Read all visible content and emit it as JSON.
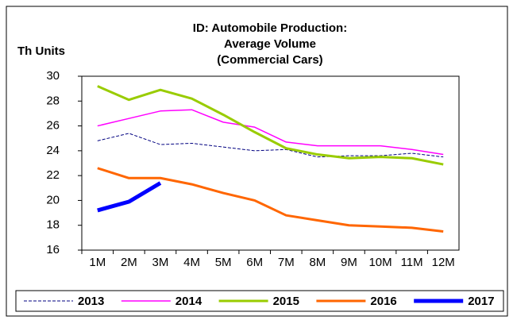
{
  "chart_data": {
    "type": "line",
    "title": [
      "ID: Automobile Production:",
      "Average Volume",
      "(Commercial Cars)"
    ],
    "y_label": "Th Units",
    "categories": [
      "1M",
      "2M",
      "3M",
      "4M",
      "5M",
      "6M",
      "7M",
      "8M",
      "9M",
      "10M",
      "11M",
      "12M"
    ],
    "series": [
      {
        "name": "2013",
        "color": "#000080",
        "width": 1,
        "dashed": true,
        "values": [
          24.8,
          25.4,
          24.5,
          24.6,
          24.3,
          24.0,
          24.1,
          23.5,
          23.6,
          23.6,
          23.8,
          23.5
        ]
      },
      {
        "name": "2014",
        "color": "#ff00ff",
        "width": 1.5,
        "dashed": false,
        "values": [
          26.0,
          26.6,
          27.2,
          27.3,
          26.3,
          25.9,
          24.7,
          24.4,
          24.4,
          24.4,
          24.1,
          23.7
        ]
      },
      {
        "name": "2015",
        "color": "#99cc00",
        "width": 3,
        "dashed": false,
        "values": [
          29.2,
          28.1,
          28.9,
          28.2,
          26.9,
          25.5,
          24.2,
          23.7,
          23.4,
          23.5,
          23.4,
          22.9
        ]
      },
      {
        "name": "2016",
        "color": "#ff6600",
        "width": 3,
        "dashed": false,
        "values": [
          22.6,
          21.8,
          21.8,
          21.3,
          20.6,
          20.0,
          18.8,
          18.4,
          18.0,
          17.9,
          17.8,
          17.5
        ]
      },
      {
        "name": "2017",
        "color": "#0000ff",
        "width": 5,
        "dashed": false,
        "values": [
          19.2,
          19.9,
          21.4,
          null,
          null,
          null,
          null,
          null,
          null,
          null,
          null,
          null
        ]
      }
    ],
    "ylim": [
      16,
      30
    ],
    "yticks": [
      16,
      18,
      20,
      22,
      24,
      26,
      28,
      30
    ],
    "grid": false,
    "legend": "bottom"
  }
}
